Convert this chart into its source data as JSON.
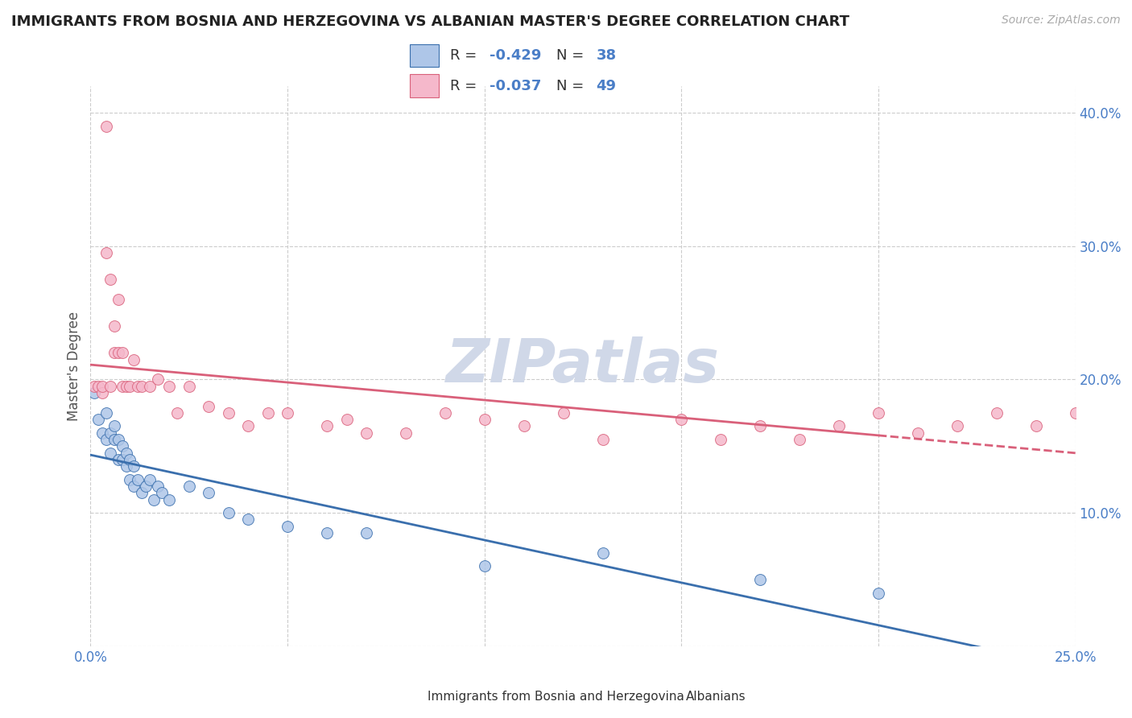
{
  "title": "IMMIGRANTS FROM BOSNIA AND HERZEGOVINA VS ALBANIAN MASTER'S DEGREE CORRELATION CHART",
  "source": "Source: ZipAtlas.com",
  "ylabel": "Master's Degree",
  "xlim": [
    0.0,
    0.25
  ],
  "ylim": [
    0.0,
    0.42
  ],
  "x_ticks": [
    0.0,
    0.05,
    0.1,
    0.15,
    0.2,
    0.25
  ],
  "y_ticks": [
    0.0,
    0.1,
    0.2,
    0.3,
    0.4
  ],
  "legend_label1": "Immigrants from Bosnia and Herzegovina",
  "legend_label2": "Albanians",
  "R1": -0.429,
  "N1": 38,
  "R2": -0.037,
  "N2": 49,
  "color1": "#aec6e8",
  "color2": "#f5b8cb",
  "line_color1": "#3a6fad",
  "line_color2": "#d9607a",
  "watermark_color": "#d0d8e8",
  "background_color": "#ffffff",
  "grid_color": "#cccccc",
  "tick_color": "#4a7ec7",
  "scatter1_x": [
    0.001,
    0.002,
    0.003,
    0.004,
    0.004,
    0.005,
    0.005,
    0.006,
    0.006,
    0.007,
    0.007,
    0.008,
    0.008,
    0.009,
    0.009,
    0.01,
    0.01,
    0.011,
    0.011,
    0.012,
    0.013,
    0.014,
    0.015,
    0.016,
    0.017,
    0.018,
    0.02,
    0.025,
    0.03,
    0.035,
    0.04,
    0.05,
    0.06,
    0.07,
    0.1,
    0.13,
    0.17,
    0.2
  ],
  "scatter1_y": [
    0.19,
    0.17,
    0.16,
    0.175,
    0.155,
    0.16,
    0.145,
    0.165,
    0.155,
    0.155,
    0.14,
    0.15,
    0.14,
    0.145,
    0.135,
    0.14,
    0.125,
    0.135,
    0.12,
    0.125,
    0.115,
    0.12,
    0.125,
    0.11,
    0.12,
    0.115,
    0.11,
    0.12,
    0.115,
    0.1,
    0.095,
    0.09,
    0.085,
    0.085,
    0.06,
    0.07,
    0.05,
    0.04
  ],
  "scatter2_x": [
    0.001,
    0.002,
    0.003,
    0.003,
    0.004,
    0.004,
    0.005,
    0.005,
    0.006,
    0.006,
    0.007,
    0.007,
    0.008,
    0.008,
    0.009,
    0.01,
    0.011,
    0.012,
    0.013,
    0.015,
    0.017,
    0.02,
    0.022,
    0.025,
    0.03,
    0.035,
    0.04,
    0.045,
    0.05,
    0.06,
    0.065,
    0.07,
    0.08,
    0.09,
    0.1,
    0.11,
    0.12,
    0.13,
    0.15,
    0.16,
    0.17,
    0.18,
    0.19,
    0.2,
    0.21,
    0.22,
    0.23,
    0.24,
    0.25
  ],
  "scatter2_y": [
    0.195,
    0.195,
    0.19,
    0.195,
    0.39,
    0.295,
    0.195,
    0.275,
    0.24,
    0.22,
    0.26,
    0.22,
    0.22,
    0.195,
    0.195,
    0.195,
    0.215,
    0.195,
    0.195,
    0.195,
    0.2,
    0.195,
    0.175,
    0.195,
    0.18,
    0.175,
    0.165,
    0.175,
    0.175,
    0.165,
    0.17,
    0.16,
    0.16,
    0.175,
    0.17,
    0.165,
    0.175,
    0.155,
    0.17,
    0.155,
    0.165,
    0.155,
    0.165,
    0.175,
    0.16,
    0.165,
    0.175,
    0.165,
    0.175
  ]
}
